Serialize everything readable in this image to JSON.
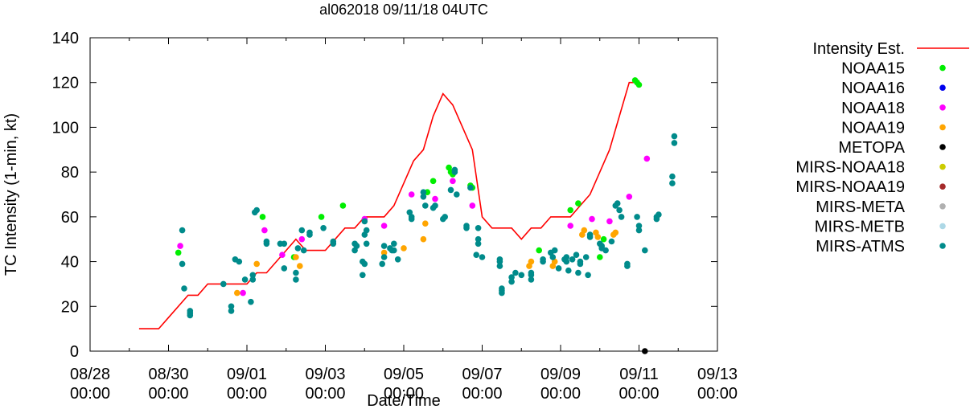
{
  "chart_data": {
    "type": "scatter",
    "title": "al062018 09/11/18 04UTC",
    "xlabel": "Date/Time",
    "ylabel": "TC Intensity (1-min, kt)",
    "xlim": [
      0,
      16
    ],
    "ylim": [
      0,
      140
    ],
    "y_ticks": [
      0,
      20,
      40,
      60,
      80,
      100,
      120,
      140
    ],
    "x_ticks": [
      {
        "x": 0,
        "date": "08/28",
        "time": "00:00"
      },
      {
        "x": 2,
        "date": "08/30",
        "time": "00:00"
      },
      {
        "x": 4,
        "date": "09/01",
        "time": "00:00"
      },
      {
        "x": 6,
        "date": "09/03",
        "time": "00:00"
      },
      {
        "x": 8,
        "date": "09/05",
        "time": "00:00"
      },
      {
        "x": 10,
        "date": "09/07",
        "time": "00:00"
      },
      {
        "x": 12,
        "date": "09/09",
        "time": "00:00"
      },
      {
        "x": 14,
        "date": "09/11",
        "time": "00:00"
      },
      {
        "x": 16,
        "date": "09/13",
        "time": "00:00"
      }
    ],
    "grid": false,
    "legend_position": "right",
    "series": [
      {
        "name": "Intensity Est.",
        "kind": "line",
        "color": "#ff0000",
        "points": [
          [
            1.25,
            10
          ],
          [
            1.75,
            10
          ],
          [
            2,
            15
          ],
          [
            2.5,
            25
          ],
          [
            2.75,
            25
          ],
          [
            3,
            30
          ],
          [
            3.5,
            30
          ],
          [
            4,
            30
          ],
          [
            4.25,
            35
          ],
          [
            4.5,
            35
          ],
          [
            5,
            45
          ],
          [
            5.25,
            50
          ],
          [
            5.5,
            45
          ],
          [
            6,
            45
          ],
          [
            6.25,
            50
          ],
          [
            6.5,
            55
          ],
          [
            6.75,
            55
          ],
          [
            7,
            60
          ],
          [
            7.5,
            60
          ],
          [
            7.75,
            65
          ],
          [
            8,
            75
          ],
          [
            8.25,
            85
          ],
          [
            8.5,
            90
          ],
          [
            8.75,
            105
          ],
          [
            9,
            115
          ],
          [
            9.25,
            110
          ],
          [
            9.5,
            100
          ],
          [
            9.75,
            90
          ],
          [
            10,
            60
          ],
          [
            10.25,
            55
          ],
          [
            10.75,
            55
          ],
          [
            11,
            50
          ],
          [
            11.25,
            55
          ],
          [
            11.5,
            55
          ],
          [
            11.75,
            60
          ],
          [
            12.25,
            60
          ],
          [
            12.5,
            65
          ],
          [
            12.75,
            70
          ],
          [
            13,
            80
          ],
          [
            13.25,
            90
          ],
          [
            13.5,
            105
          ],
          [
            13.75,
            120
          ],
          [
            13.9,
            120
          ]
        ]
      },
      {
        "name": "NOAA15",
        "kind": "points",
        "color": "#00ee00",
        "points": [
          [
            2.25,
            44
          ],
          [
            4.4,
            60
          ],
          [
            5.2,
            42
          ],
          [
            5.9,
            60
          ],
          [
            6.45,
            65
          ],
          [
            8.6,
            71
          ],
          [
            8.75,
            76
          ],
          [
            9.15,
            82
          ],
          [
            9.2,
            80
          ],
          [
            9.25,
            79
          ],
          [
            9.7,
            74
          ],
          [
            9.75,
            73
          ],
          [
            11.45,
            45
          ],
          [
            12.25,
            63
          ],
          [
            12.45,
            66
          ],
          [
            13.0,
            42
          ],
          [
            13.1,
            50
          ],
          [
            13.9,
            121
          ],
          [
            13.95,
            120
          ],
          [
            14.0,
            119
          ]
        ]
      },
      {
        "name": "NOAA16",
        "kind": "points",
        "color": "#0000ee",
        "points": []
      },
      {
        "name": "NOAA18",
        "kind": "points",
        "color": "#ff00ff",
        "points": [
          [
            2.3,
            47
          ],
          [
            3.9,
            26
          ],
          [
            4.45,
            54
          ],
          [
            4.9,
            43
          ],
          [
            5.4,
            50
          ],
          [
            7.0,
            59
          ],
          [
            7.5,
            56
          ],
          [
            8.2,
            70
          ],
          [
            8.8,
            68
          ],
          [
            9.25,
            76
          ],
          [
            9.75,
            65
          ],
          [
            12.25,
            56
          ],
          [
            12.8,
            59
          ],
          [
            13.25,
            58
          ],
          [
            13.75,
            69
          ],
          [
            14.2,
            86
          ]
        ]
      },
      {
        "name": "NOAA19",
        "kind": "points",
        "color": "#ffa500",
        "points": [
          [
            3.75,
            26
          ],
          [
            4.25,
            39
          ],
          [
            5.25,
            42
          ],
          [
            5.35,
            38
          ],
          [
            7.5,
            44
          ],
          [
            8.0,
            46
          ],
          [
            8.5,
            50
          ],
          [
            8.55,
            57
          ],
          [
            11.2,
            38
          ],
          [
            11.25,
            40
          ],
          [
            11.8,
            38
          ],
          [
            11.85,
            40
          ],
          [
            12.55,
            52
          ],
          [
            12.6,
            54
          ],
          [
            12.9,
            53
          ],
          [
            12.95,
            51
          ],
          [
            13.35,
            52
          ],
          [
            13.4,
            53
          ]
        ]
      },
      {
        "name": "METOPA",
        "kind": "points",
        "color": "#000000",
        "points": [
          [
            14.15,
            0
          ]
        ]
      },
      {
        "name": "MIRS-NOAA18",
        "kind": "points",
        "color": "#cccc00",
        "points": []
      },
      {
        "name": "MIRS-NOAA19",
        "kind": "points",
        "color": "#a52a2a",
        "points": []
      },
      {
        "name": "MIRS-META",
        "kind": "points",
        "color": "#b0b0b0",
        "points": []
      },
      {
        "name": "MIRS-METB",
        "kind": "points",
        "color": "#add8e6",
        "points": []
      },
      {
        "name": "MIRS-ATMS",
        "kind": "points",
        "color": "#008b8b",
        "points": [
          [
            2.35,
            54
          ],
          [
            2.35,
            39
          ],
          [
            2.4,
            28
          ],
          [
            2.55,
            18
          ],
          [
            2.55,
            16
          ],
          [
            2.55,
            17
          ],
          [
            3.4,
            30
          ],
          [
            3.6,
            20
          ],
          [
            3.6,
            18
          ],
          [
            3.7,
            41
          ],
          [
            3.8,
            40
          ],
          [
            3.95,
            32
          ],
          [
            4.1,
            22
          ],
          [
            4.15,
            32
          ],
          [
            4.15,
            34
          ],
          [
            4.2,
            62
          ],
          [
            4.25,
            63
          ],
          [
            4.5,
            48
          ],
          [
            4.5,
            49
          ],
          [
            4.85,
            48
          ],
          [
            4.95,
            48
          ],
          [
            4.95,
            37
          ],
          [
            5.25,
            35
          ],
          [
            5.25,
            32
          ],
          [
            5.3,
            46
          ],
          [
            5.4,
            54
          ],
          [
            5.45,
            45
          ],
          [
            5.6,
            52
          ],
          [
            5.6,
            53
          ],
          [
            5.95,
            55
          ],
          [
            6.2,
            48
          ],
          [
            6.2,
            49
          ],
          [
            6.75,
            48
          ],
          [
            6.75,
            45
          ],
          [
            6.8,
            47
          ],
          [
            6.95,
            34
          ],
          [
            6.95,
            40
          ],
          [
            7.0,
            39
          ],
          [
            7.0,
            58
          ],
          [
            7.0,
            52
          ],
          [
            7.05,
            54
          ],
          [
            7.05,
            48
          ],
          [
            7.45,
            39
          ],
          [
            7.5,
            42
          ],
          [
            7.5,
            47
          ],
          [
            7.65,
            46
          ],
          [
            7.7,
            45
          ],
          [
            7.75,
            45
          ],
          [
            7.75,
            48
          ],
          [
            7.85,
            41
          ],
          [
            8.15,
            62
          ],
          [
            8.2,
            59
          ],
          [
            8.2,
            60
          ],
          [
            8.5,
            69
          ],
          [
            8.5,
            71
          ],
          [
            8.55,
            65
          ],
          [
            8.75,
            64
          ],
          [
            8.8,
            65
          ],
          [
            9.0,
            59
          ],
          [
            9.05,
            60
          ],
          [
            9.2,
            72
          ],
          [
            9.3,
            80
          ],
          [
            9.3,
            81
          ],
          [
            9.35,
            70
          ],
          [
            9.6,
            56
          ],
          [
            9.6,
            55
          ],
          [
            9.7,
            73
          ],
          [
            9.85,
            43
          ],
          [
            9.9,
            48
          ],
          [
            9.9,
            50
          ],
          [
            9.9,
            55
          ],
          [
            10.0,
            42
          ],
          [
            10.45,
            38
          ],
          [
            10.45,
            40
          ],
          [
            10.45,
            41
          ],
          [
            10.5,
            27
          ],
          [
            10.5,
            26
          ],
          [
            10.5,
            28
          ],
          [
            10.75,
            31
          ],
          [
            10.75,
            33
          ],
          [
            10.85,
            35
          ],
          [
            11.0,
            34
          ],
          [
            11.25,
            32
          ],
          [
            11.25,
            34
          ],
          [
            11.25,
            35
          ],
          [
            11.55,
            40
          ],
          [
            11.55,
            41
          ],
          [
            11.75,
            44
          ],
          [
            11.8,
            42
          ],
          [
            11.85,
            45
          ],
          [
            11.95,
            37
          ],
          [
            12.1,
            41
          ],
          [
            12.15,
            42
          ],
          [
            12.15,
            40
          ],
          [
            12.2,
            36
          ],
          [
            12.3,
            41
          ],
          [
            12.4,
            43
          ],
          [
            12.45,
            35
          ],
          [
            12.5,
            40
          ],
          [
            12.5,
            39
          ],
          [
            12.65,
            42
          ],
          [
            12.7,
            34
          ],
          [
            12.75,
            51
          ],
          [
            12.75,
            52
          ],
          [
            13.0,
            48
          ],
          [
            13.05,
            47
          ],
          [
            13.05,
            46
          ],
          [
            13.15,
            45
          ],
          [
            13.3,
            49
          ],
          [
            13.4,
            65
          ],
          [
            13.45,
            66
          ],
          [
            13.5,
            63
          ],
          [
            13.55,
            60
          ],
          [
            13.7,
            38
          ],
          [
            13.7,
            39
          ],
          [
            13.95,
            60
          ],
          [
            14.0,
            56
          ],
          [
            14.0,
            54
          ],
          [
            14.15,
            45
          ],
          [
            14.45,
            59
          ],
          [
            14.45,
            60
          ],
          [
            14.5,
            61
          ],
          [
            14.85,
            75
          ],
          [
            14.85,
            78
          ],
          [
            14.9,
            93
          ],
          [
            14.9,
            96
          ]
        ]
      }
    ]
  }
}
